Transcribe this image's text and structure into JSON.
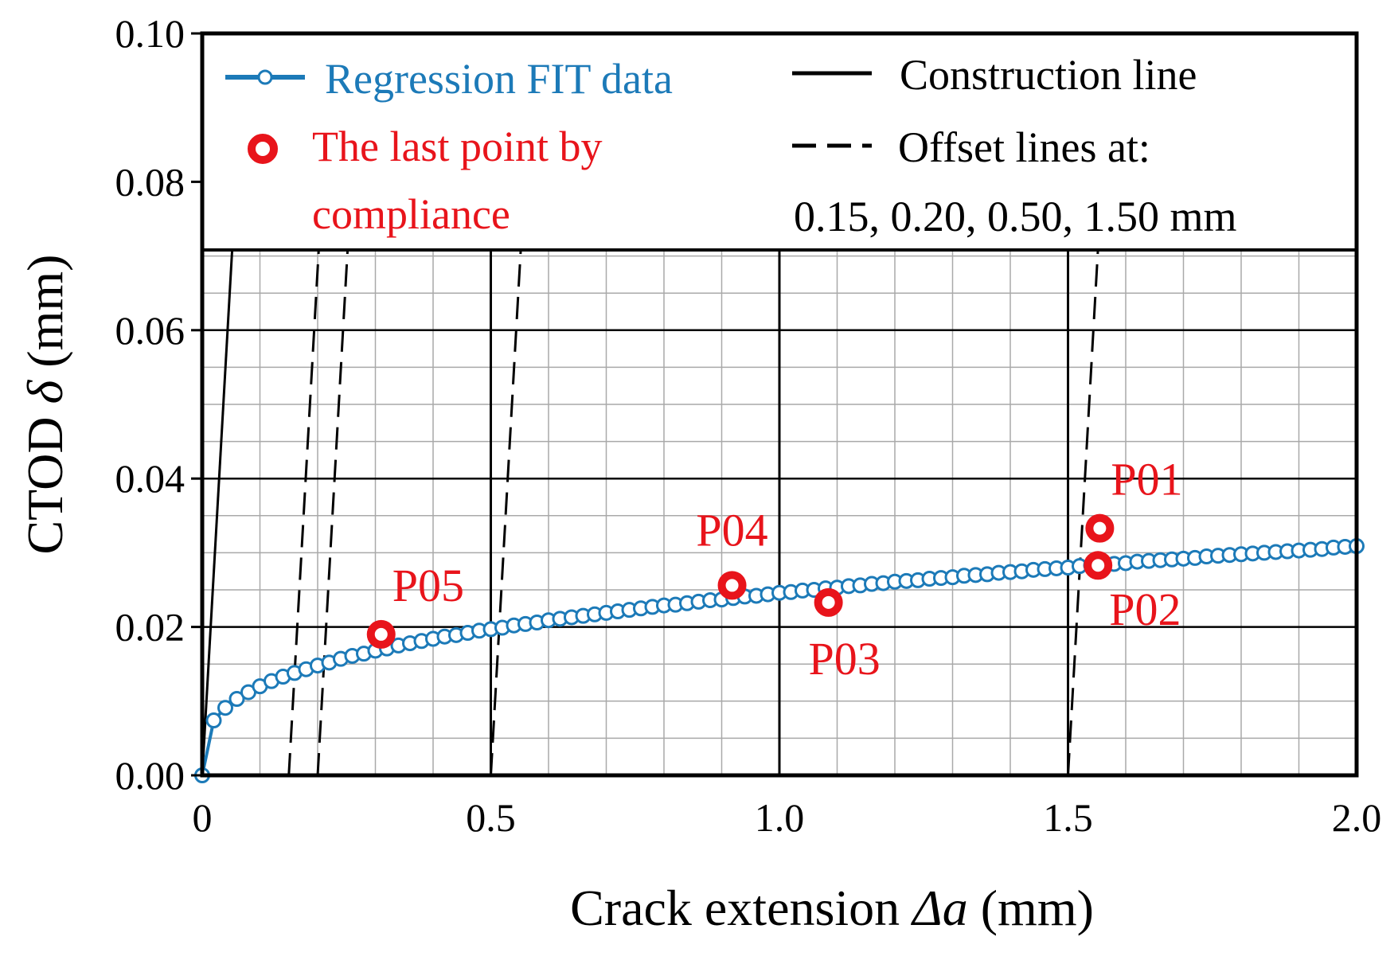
{
  "chart_data": {
    "type": "line",
    "xlabel": "Crack extension Δa (mm)",
    "xlabel_parts": {
      "prefix": "Crack extension ",
      "italic": "Δa",
      "suffix": " (mm)"
    },
    "ylabel": "CTOD δ (mm)",
    "ylabel_parts": {
      "prefix": "CTOD ",
      "italic": "δ",
      "suffix": " (mm)"
    },
    "xlim": [
      0,
      2.0
    ],
    "ylim": [
      0,
      0.1
    ],
    "x_ticks": [
      0,
      0.5,
      1.0,
      1.5,
      2.0
    ],
    "x_tick_labels": [
      "0",
      "0.5",
      "1.0",
      "1.5",
      "2.0"
    ],
    "y_ticks": [
      0,
      0.02,
      0.04,
      0.06,
      0.08,
      0.1
    ],
    "y_tick_labels": [
      "0.00",
      "0.02",
      "0.04",
      "0.06",
      "0.08",
      "0.10"
    ],
    "grid": {
      "x_minor_step": 0.1,
      "y_minor_step": 0.005,
      "y_max": 0.071
    },
    "regression_fit": {
      "name": "Regression FIT data",
      "color": "#1c7ab8",
      "x": [
        0,
        0.02,
        0.04,
        0.06,
        0.08,
        0.1,
        0.12,
        0.14,
        0.16,
        0.18,
        0.2,
        0.22,
        0.24,
        0.26,
        0.28,
        0.3,
        0.32,
        0.34,
        0.36,
        0.38,
        0.4,
        0.42,
        0.44,
        0.46,
        0.48,
        0.5,
        0.52,
        0.54,
        0.56,
        0.58,
        0.6,
        0.62,
        0.64,
        0.66,
        0.68,
        0.7,
        0.72,
        0.74,
        0.76,
        0.78,
        0.8,
        0.82,
        0.84,
        0.86,
        0.88,
        0.9,
        0.92,
        0.94,
        0.96,
        0.98,
        1.0,
        1.02,
        1.04,
        1.06,
        1.08,
        1.1,
        1.12,
        1.14,
        1.16,
        1.18,
        1.2,
        1.22,
        1.24,
        1.26,
        1.28,
        1.3,
        1.32,
        1.34,
        1.36,
        1.38,
        1.4,
        1.42,
        1.44,
        1.46,
        1.48,
        1.5,
        1.52,
        1.54,
        1.56,
        1.58,
        1.6,
        1.62,
        1.64,
        1.66,
        1.68,
        1.7,
        1.72,
        1.74,
        1.76,
        1.78,
        1.8,
        1.82,
        1.84,
        1.86,
        1.88,
        1.9,
        1.92,
        1.94,
        1.96,
        1.98,
        2.0
      ],
      "y": [
        0.0,
        0.0074,
        0.0091,
        0.0103,
        0.0112,
        0.012,
        0.0127,
        0.0133,
        0.0138,
        0.0143,
        0.0148,
        0.0152,
        0.0157,
        0.0161,
        0.0164,
        0.0168,
        0.0171,
        0.0175,
        0.0178,
        0.0181,
        0.0184,
        0.0187,
        0.0189,
        0.0192,
        0.0195,
        0.0197,
        0.0199,
        0.0202,
        0.0204,
        0.0206,
        0.0209,
        0.0211,
        0.0213,
        0.0215,
        0.0217,
        0.0219,
        0.0221,
        0.0223,
        0.0225,
        0.0227,
        0.0229,
        0.023,
        0.0232,
        0.0234,
        0.0236,
        0.0237,
        0.0239,
        0.0241,
        0.0242,
        0.0244,
        0.0246,
        0.0247,
        0.0249,
        0.025,
        0.0252,
        0.0253,
        0.0255,
        0.0256,
        0.0258,
        0.0259,
        0.0261,
        0.0262,
        0.0263,
        0.0265,
        0.0266,
        0.0267,
        0.0269,
        0.027,
        0.0271,
        0.0273,
        0.0274,
        0.0275,
        0.0277,
        0.0278,
        0.0279,
        0.028,
        0.0282,
        0.0283,
        0.0284,
        0.0285,
        0.0286,
        0.0288,
        0.0289,
        0.029,
        0.0291,
        0.0292,
        0.0293,
        0.0295,
        0.0296,
        0.0297,
        0.0298,
        0.0299,
        0.03,
        0.0301,
        0.0302,
        0.0303,
        0.0304,
        0.0305,
        0.0307,
        0.0308,
        0.0309
      ]
    },
    "construction_lines": {
      "name": "Construction line",
      "color": "#000000",
      "lines": [
        {
          "x": [
            0.0,
            0.052
          ],
          "y": [
            0.0,
            0.071
          ]
        },
        {
          "x": [
            0.5,
            0.5
          ],
          "y": [
            0.0,
            0.071
          ]
        },
        {
          "x": [
            1.0,
            1.0
          ],
          "y": [
            0.0,
            0.071
          ]
        },
        {
          "x": [
            1.5,
            1.5
          ],
          "y": [
            0.0,
            0.071
          ]
        }
      ]
    },
    "offset_lines": {
      "name": "Offset lines at:",
      "values_label": "0.15, 0.20, 0.50, 1.50 mm",
      "color": "#000000",
      "lines": [
        {
          "x": [
            0.15,
            0.202
          ],
          "y": [
            0.0,
            0.071
          ]
        },
        {
          "x": [
            0.2,
            0.252
          ],
          "y": [
            0.0,
            0.071
          ]
        },
        {
          "x": [
            0.5,
            0.552
          ],
          "y": [
            0.0,
            0.071
          ]
        },
        {
          "x": [
            1.5,
            1.552
          ],
          "y": [
            0.0,
            0.071
          ]
        }
      ]
    },
    "last_points": {
      "name_line1": "The last point by",
      "name_line2": "compliance",
      "color": "#e8141b",
      "points": [
        {
          "label": "P01",
          "x": 1.555,
          "y": 0.0333,
          "label_pos": "above-right"
        },
        {
          "label": "P02",
          "x": 1.552,
          "y": 0.0283,
          "label_pos": "below-right"
        },
        {
          "label": "P03",
          "x": 1.085,
          "y": 0.0233,
          "label_pos": "below"
        },
        {
          "label": "P04",
          "x": 0.918,
          "y": 0.0256,
          "label_pos": "above"
        },
        {
          "label": "P05",
          "x": 0.31,
          "y": 0.019,
          "label_pos": "above-right"
        }
      ]
    },
    "legend": {
      "position": "top"
    }
  }
}
